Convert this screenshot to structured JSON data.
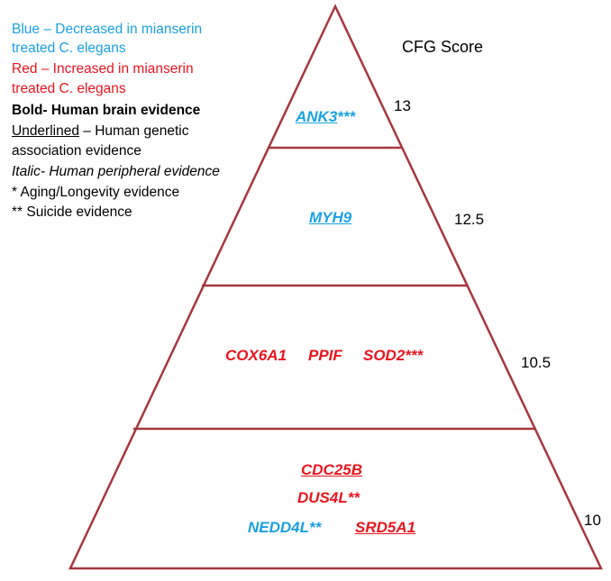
{
  "colors": {
    "blue": "#1ba1e2",
    "red": "#e8141e",
    "outline": "#a5373f"
  },
  "legend": {
    "blue_line1": "Blue – Decreased in mianserin",
    "blue_line2": "treated C. elegans",
    "red_line1": "Red – Increased in mianserin",
    "red_line2": "treated C. elegans",
    "bold_line": "Bold- Human brain evidence",
    "underlined_word": "Underlined",
    "underlined_rest": " – Human genetic",
    "underlined_line2": "association evidence",
    "italic_line": "Italic- Human peripheral evidence",
    "aging_line": "* Aging/Longevity evidence",
    "suicide_line": "** Suicide evidence"
  },
  "score_title": "CFG Score",
  "tiers": [
    {
      "score": "13",
      "genes": [
        {
          "name": "ANK3",
          "suffix": "***",
          "color": "blue",
          "underline": true
        }
      ]
    },
    {
      "score": "12.5",
      "genes": [
        {
          "name": "MYH9",
          "suffix": "",
          "color": "blue",
          "underline": true
        }
      ]
    },
    {
      "score": "10.5",
      "genes": [
        {
          "name": "COX6A1",
          "suffix": "",
          "color": "red",
          "underline": false
        },
        {
          "name": "PPIF",
          "suffix": "",
          "color": "red",
          "underline": false
        },
        {
          "name": "SOD2",
          "suffix": "***",
          "color": "red",
          "underline": false
        }
      ]
    },
    {
      "score": "10",
      "genes": [
        {
          "name": "CDC25B",
          "suffix": "",
          "color": "red",
          "underline": true
        },
        {
          "name": "DUS4L",
          "suffix": "**",
          "color": "red",
          "underline": false
        },
        {
          "name": "NEDD4L",
          "suffix": "**",
          "color": "blue",
          "underline": false
        },
        {
          "name": "SRD5A1",
          "suffix": "",
          "color": "red",
          "underline": true
        }
      ]
    }
  ]
}
